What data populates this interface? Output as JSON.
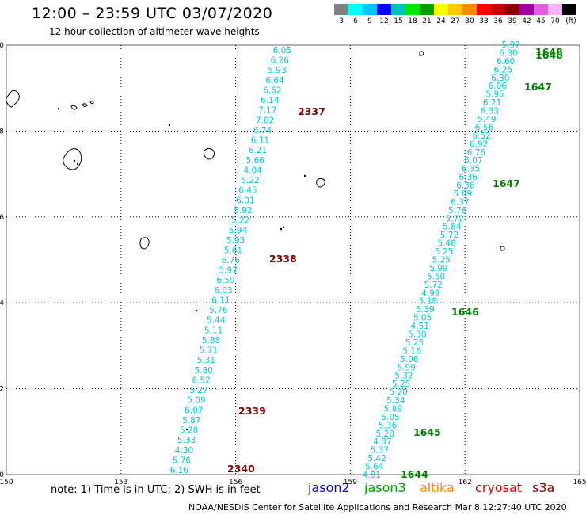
{
  "header": {
    "title": "12:00 – 23:59 UTC 03/07/2020",
    "subtitle": "12 hour collection of altimeter wave heights"
  },
  "legend": {
    "colors": [
      "#808080",
      "#00ffff",
      "#00c8ff",
      "#0000ff",
      "#00bfbf",
      "#00e600",
      "#00a000",
      "#ffff00",
      "#ffc800",
      "#ff8c00",
      "#ff0000",
      "#c80000",
      "#8c0000",
      "#a000a0",
      "#e060e0",
      "#ffb0ff",
      "#000000"
    ],
    "labels": [
      "3",
      "6",
      "9",
      "12",
      "15",
      "18",
      "21",
      "24",
      "27",
      "30",
      "33",
      "36",
      "39",
      "42",
      "45",
      "70",
      "(ft)"
    ]
  },
  "map": {
    "lon_range": [
      150,
      165
    ],
    "lat_range": [
      0,
      10
    ],
    "x_ticks": [
      "150",
      "153",
      "156",
      "159",
      "162",
      "165"
    ],
    "y_ticks": [
      "0",
      "2",
      "4",
      "6",
      "8",
      "10"
    ],
    "swh_color": "#00c8d8",
    "track_colors": {
      "jason3": "#008000",
      "cryosat": "#800000"
    },
    "tracks": [
      {
        "satellite": "cryosat",
        "values": [
          "6.05",
          "6.26",
          "5.93",
          "6.64",
          "6.62",
          "6.14",
          "7.17",
          "7.02",
          "6.74",
          "6.11",
          "6.21",
          "5.66",
          "4.04",
          "5.22",
          "6.45",
          "6.01",
          "5.92",
          "5.22",
          "5.94",
          "5.93",
          "5.61",
          "6.76",
          "5.97",
          "6.59",
          "6.03",
          "6.11",
          "5.76",
          "5.44",
          "5.11",
          "5.88",
          "5.71",
          "5.31",
          "5.80",
          "6.52",
          "5.27",
          "5.09",
          "6.07",
          "5.87",
          "5.28",
          "5.33",
          "4.30",
          "5.76",
          "6.16"
        ],
        "passes": [
          {
            "label": "2337",
            "lat": 8.5
          },
          {
            "label": "2338",
            "lat": 5.2
          },
          {
            "label": "2339",
            "lat": 1.5
          },
          {
            "label": "2340",
            "lat": 0.1
          }
        ]
      },
      {
        "satellite": "jason3",
        "values": [
          "5.97",
          "6.30",
          "6.60",
          "6.26",
          "6.30",
          "6.06",
          "5.95",
          "6.21",
          "6.33",
          "5.49",
          "6.56",
          "6.52",
          "6.92",
          "6.76",
          "6.07",
          "6.35",
          "6.36",
          "6.36",
          "5.89",
          "6.37",
          "5.76",
          "5.72",
          "5.84",
          "5.72",
          "5.48",
          "5.25",
          "5.25",
          "5.99",
          "5.50",
          "5.72",
          "4.99",
          "5.18",
          "5.39",
          "5.05",
          "4.51",
          "5.30",
          "5.25",
          "5.16",
          "5.06",
          "5.99",
          "5.32",
          "5.25",
          "5.20",
          "5.34",
          "5.89",
          "5.05",
          "5.36",
          "5.28",
          "4.87",
          "5.37",
          "5.42",
          "5.64",
          "4.81"
        ],
        "passes": [
          {
            "label": "1648",
            "lat": 9.8
          },
          {
            "label": "1646",
            "lat": 9.7
          },
          {
            "label": "1647",
            "lat": 9.1
          },
          {
            "label": "1647",
            "lat": 6.8
          },
          {
            "label": "1646",
            "lat": 3.7
          },
          {
            "label": "1645",
            "lat": 1.0
          },
          {
            "label": "1644",
            "lat": 0.1
          }
        ]
      }
    ]
  },
  "note": "note:  1) Time is in UTC;  2) SWH is in feet",
  "satellites": [
    {
      "name": "jason2",
      "color": "#0000c8"
    },
    {
      "name": "jason3",
      "color": "#00a000"
    },
    {
      "name": "altika",
      "color": "#ff8c00"
    },
    {
      "name": "cryosat",
      "color": "#e00000"
    },
    {
      "name": "s3a",
      "color": "#800000"
    }
  ],
  "footer": "NOAA/NESDIS Center for Satellite Applications and Research    Mar  8 12:27:40 UTC 2020"
}
